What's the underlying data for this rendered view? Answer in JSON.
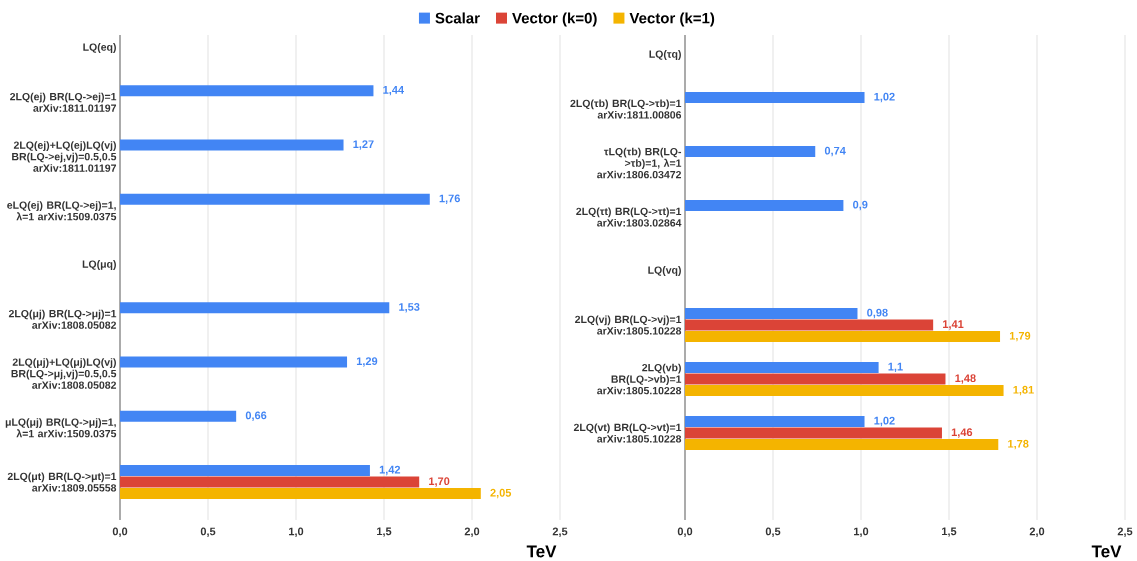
{
  "chart_data": [
    {
      "type": "bar",
      "orientation": "horizontal",
      "xlabel": "TeV",
      "legend": "top",
      "grid": "x",
      "categories": [
        "LQ(eq)",
        "2LQ(ej) BR(LQ->ej)=1 arXiv:1811.01197",
        "2LQ(ej)+LQ(ej)LQ(vj) BR(LQ->ej,vj)=0.5,0.5 arXiv:1811.01197",
        "eLQ(ej) BR(LQ->ej)=1, λ=1 arXiv:1509.0375",
        "LQ(μq)",
        "2LQ(μj) BR(LQ->μj)=1 arXiv:1808.05082",
        "2LQ(μj)+LQ(μj)LQ(vj) BR(LQ->μj,vj)=0.5,0.5 arXiv:1808.05082",
        "μLQ(μj) BR(LQ->μj)=1, λ=1 arXiv:1509.0375",
        "2LQ(μt) BR(LQ->μt)=1 arXiv:1809.05558"
      ],
      "xlim": [
        0,
        2.5
      ],
      "xticks": [
        {
          "value": 0,
          "label": "0,0"
        },
        {
          "value": 0.5,
          "label": "0,5"
        },
        {
          "value": 1,
          "label": "1,0"
        },
        {
          "value": 1.5,
          "label": "1,5"
        },
        {
          "value": 2,
          "label": "2,0"
        },
        {
          "value": 2.5,
          "label": "2,5"
        }
      ],
      "series": [
        {
          "name": "Scalar",
          "color": "#4285f4",
          "values": [
            null,
            1.44,
            1.27,
            1.76,
            null,
            1.53,
            1.29,
            0.66,
            1.42
          ],
          "value_labels": [
            null,
            "1,44",
            "1,27",
            "1,76",
            null,
            "1,53",
            "1,29",
            "0,66",
            "1,42"
          ]
        },
        {
          "name": "Vector (k=0)",
          "color": "#db4437",
          "values": [
            null,
            null,
            null,
            null,
            null,
            null,
            null,
            null,
            1.7
          ],
          "value_labels": [
            null,
            null,
            null,
            null,
            null,
            null,
            null,
            null,
            "1,70"
          ]
        },
        {
          "name": "Vector (k=1)",
          "color": "#f4b400",
          "values": [
            null,
            null,
            null,
            null,
            null,
            null,
            null,
            null,
            2.05
          ],
          "value_labels": [
            null,
            null,
            null,
            null,
            null,
            null,
            null,
            null,
            "2,05"
          ]
        }
      ]
    },
    {
      "type": "bar",
      "orientation": "horizontal",
      "xlabel": "TeV",
      "grid": "x",
      "categories": [
        "LQ(τq)",
        "2LQ(τb) BR(LQ->τb)=1 arXiv:1811.00806",
        "τLQ(τb) BR(LQ->τb)=1, λ=1 arXiv:1806.03472",
        "2LQ(τt) BR(LQ->τt)=1 arXiv:1803.02864",
        "LQ(vq)",
        "2LQ(vj) BR(LQ->vj)=1 arXiv:1805.10228",
        "2LQ(vb) BR(LQ->vb)=1 arXiv:1805.10228",
        "2LQ(vt) BR(LQ->vt)=1 arXiv:1805.10228"
      ],
      "xlim": [
        0,
        2.5
      ],
      "xticks": [
        {
          "value": 0,
          "label": "0,0"
        },
        {
          "value": 0.5,
          "label": "0,5"
        },
        {
          "value": 1,
          "label": "1,0"
        },
        {
          "value": 1.5,
          "label": "1,5"
        },
        {
          "value": 2,
          "label": "2,0"
        },
        {
          "value": 2.5,
          "label": "2,5"
        }
      ],
      "series": [
        {
          "color": "#4285f4",
          "values": [
            null,
            1.02,
            0.74,
            0.9,
            null,
            0.98,
            1.1,
            1.02
          ],
          "value_labels": [
            null,
            "1,02",
            "0,74",
            "0,9",
            null,
            "0,98",
            "1,1",
            "1,02"
          ]
        },
        {
          "color": "#db4437",
          "values": [
            null,
            null,
            null,
            null,
            null,
            1.41,
            1.48,
            1.46
          ],
          "value_labels": [
            null,
            null,
            null,
            null,
            null,
            "1,41",
            "1,48",
            "1,46"
          ]
        },
        {
          "color": "#f4b400",
          "values": [
            null,
            null,
            null,
            null,
            null,
            1.79,
            1.81,
            1.78
          ],
          "value_labels": [
            null,
            null,
            null,
            null,
            null,
            "1,79",
            "1,81",
            "1,78"
          ]
        }
      ]
    }
  ]
}
